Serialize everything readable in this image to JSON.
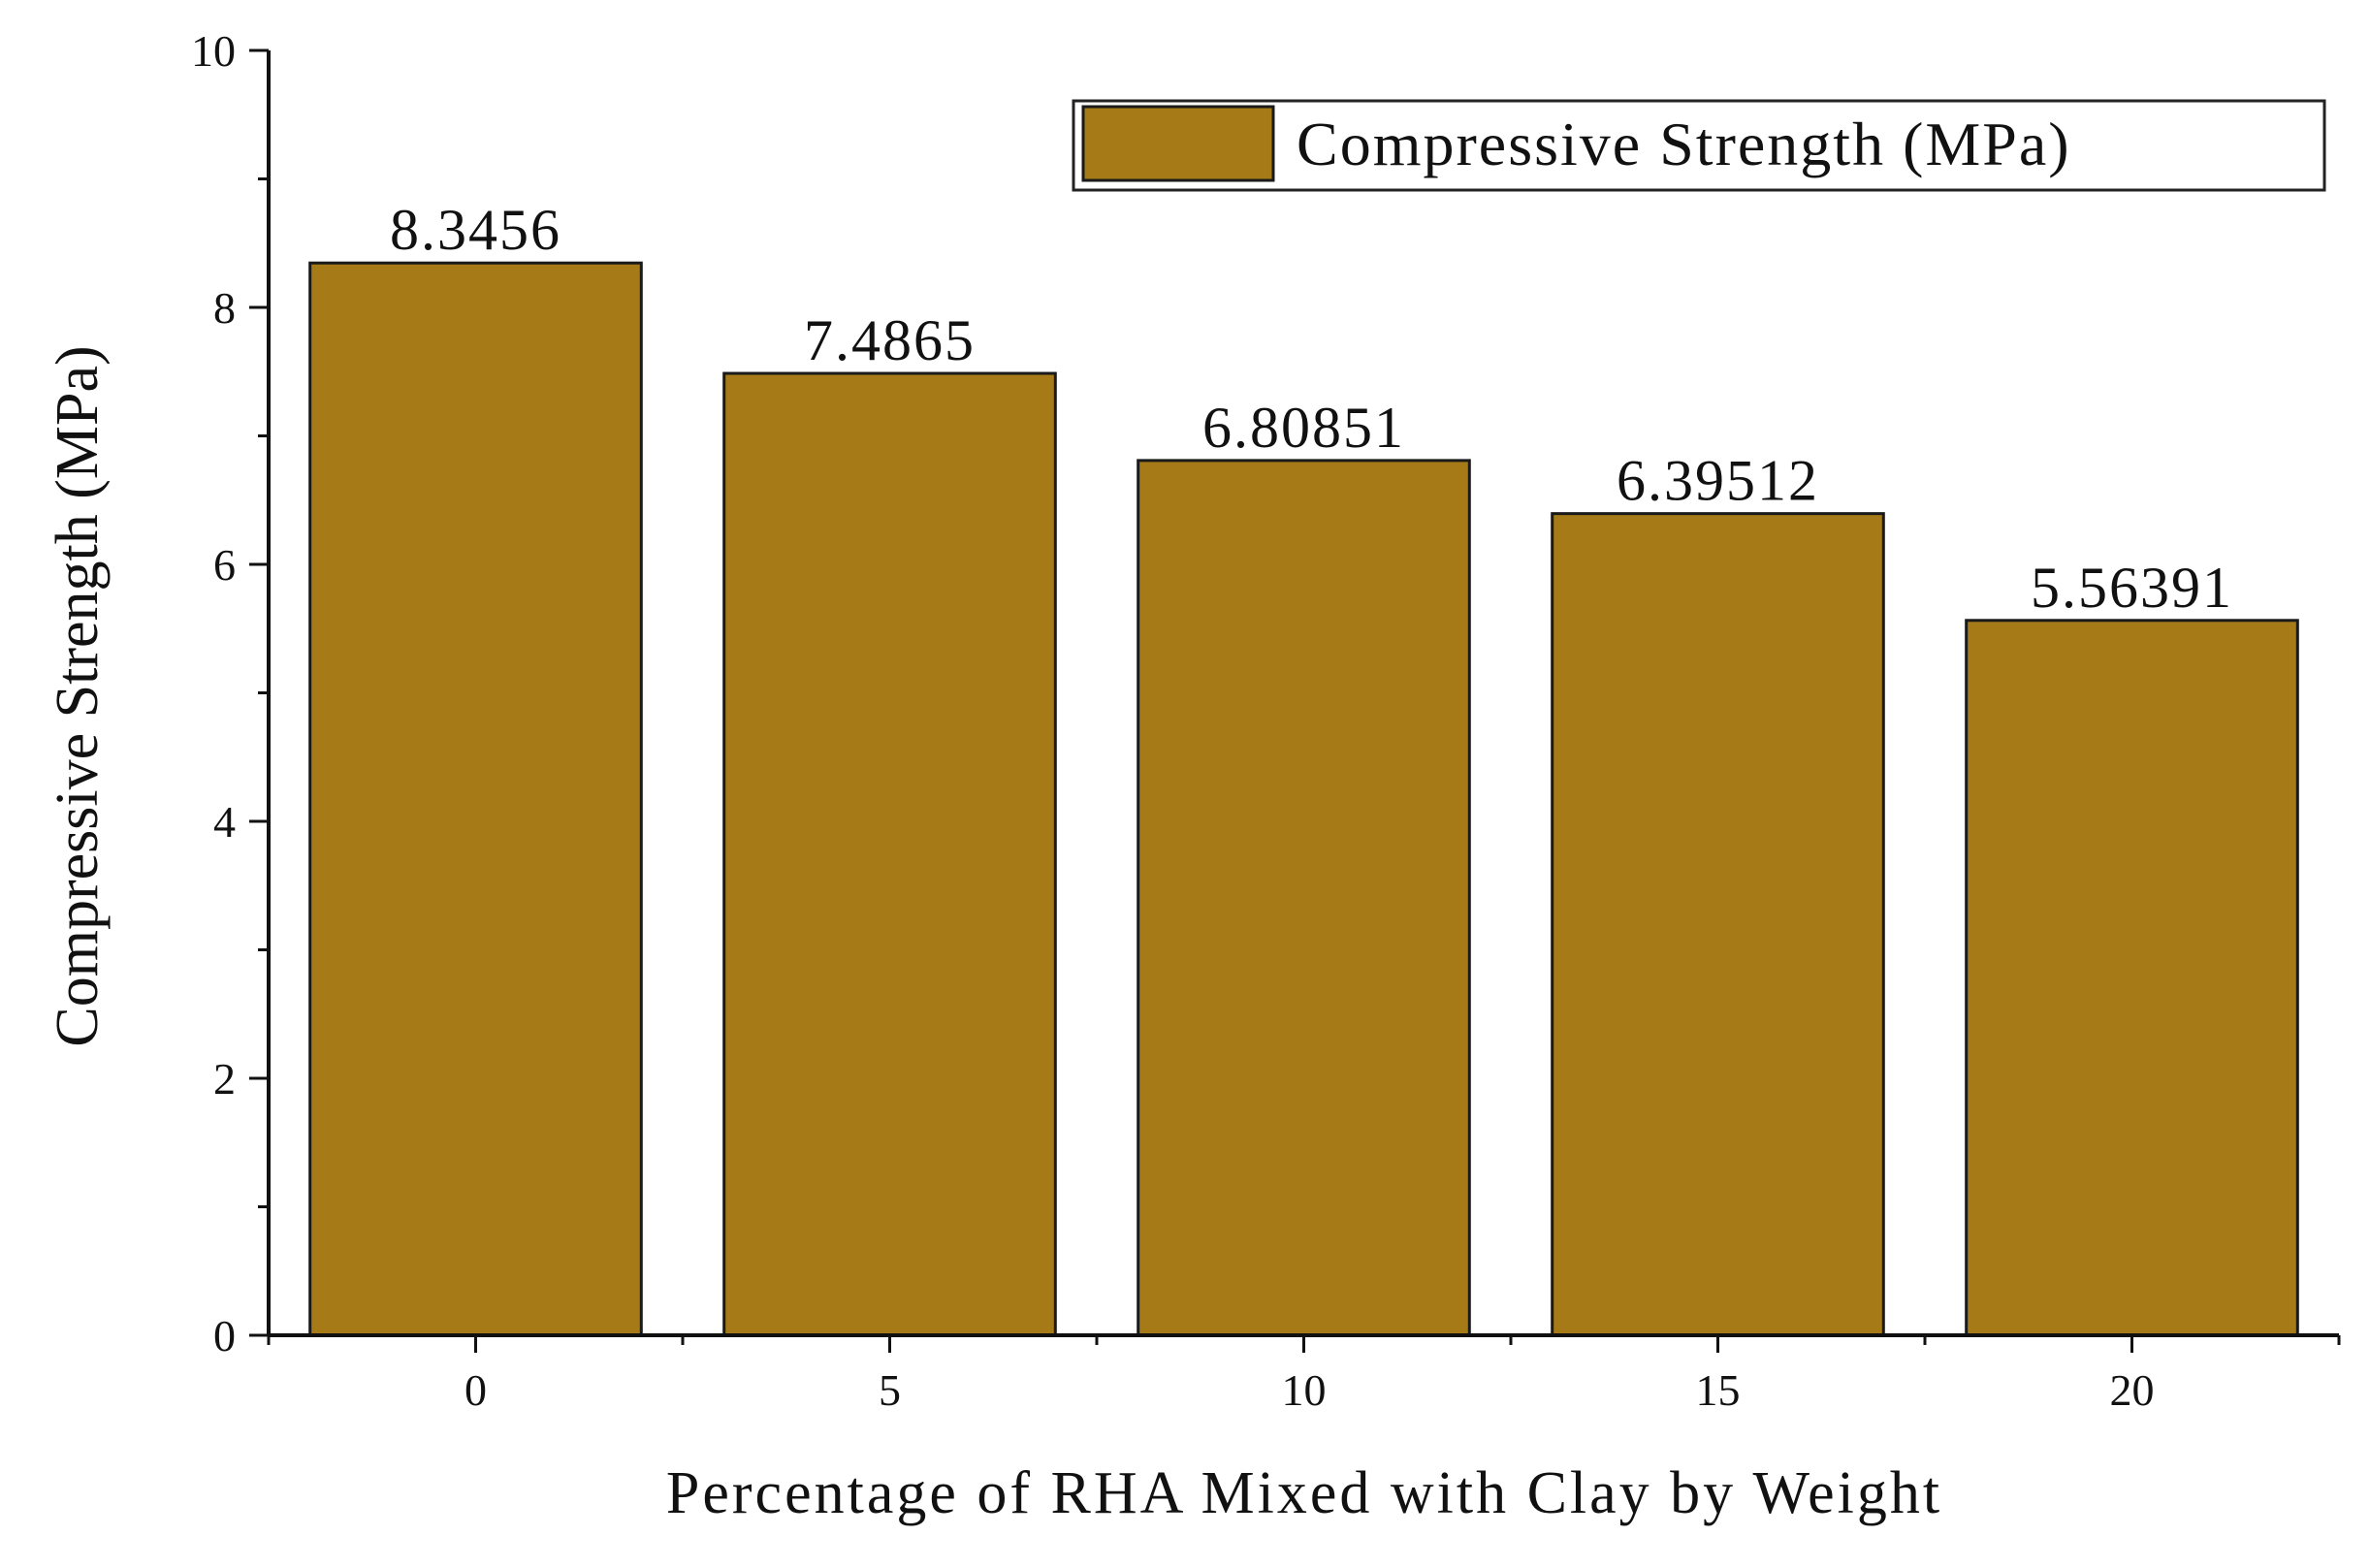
{
  "chart_data": {
    "type": "bar",
    "title": "",
    "xlabel": "Percentage of RHA Mixed with Clay by Weight",
    "ylabel": "Compressive Strength (MPa)",
    "categories": [
      "0",
      "5",
      "10",
      "15",
      "20"
    ],
    "series": [
      {
        "name": "Compressive Strength (MPa)",
        "values": [
          8.3456,
          7.4865,
          6.80851,
          6.39512,
          5.56391
        ],
        "labels": [
          "8.3456",
          "7.4865",
          "6.80851",
          "6.39512",
          "5.56391"
        ]
      }
    ],
    "yticks": [
      "0",
      "2",
      "4",
      "6",
      "8",
      "10"
    ],
    "ylim": [
      0,
      10
    ],
    "grid": false,
    "legend_position": "top-right",
    "colors": {
      "bar": "#A67A17",
      "bar_edge": "#1a1a1a",
      "axis": "#111111"
    }
  }
}
